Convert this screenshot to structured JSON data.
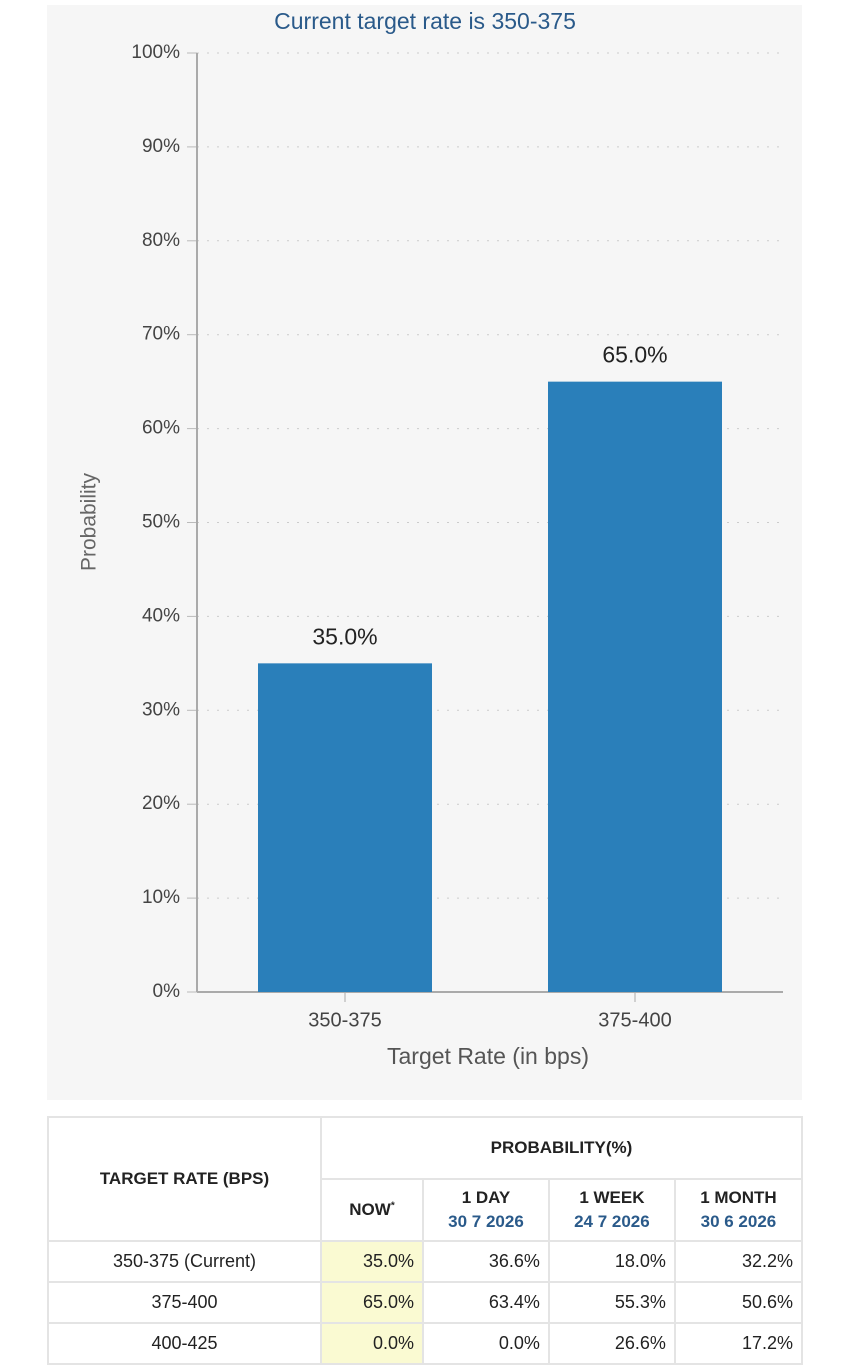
{
  "chart_data": {
    "type": "bar",
    "title": "Current target rate is 350-375",
    "categories": [
      "350-375",
      "375-400"
    ],
    "values": [
      35.0,
      65.0
    ],
    "value_labels": [
      "35.0%",
      "65.0%"
    ],
    "color": "#2a7fba",
    "ylim": [
      0,
      100
    ],
    "yticks": [
      {
        "value": 0,
        "label": "0%"
      },
      {
        "value": 10,
        "label": "10%"
      },
      {
        "value": 20,
        "label": "20%"
      },
      {
        "value": 30,
        "label": "30%"
      },
      {
        "value": 40,
        "label": "40%"
      },
      {
        "value": 50,
        "label": "50%"
      },
      {
        "value": 60,
        "label": "60%"
      },
      {
        "value": 70,
        "label": "70%"
      },
      {
        "value": 80,
        "label": "80%"
      },
      {
        "value": 90,
        "label": "90%"
      },
      {
        "value": 100,
        "label": "100%"
      }
    ],
    "y_label": "Probability",
    "x_label": "Target Rate (in bps)",
    "grid": true
  },
  "table": {
    "row_header": "TARGET RATE (BPS)",
    "group_header": "PROBABILITY(%)",
    "columns": [
      {
        "label": "NOW",
        "note": "*"
      },
      {
        "label": "1 DAY",
        "date": "30 7 2026"
      },
      {
        "label": "1 WEEK",
        "date": "24 7 2026"
      },
      {
        "label": "1 MONTH",
        "date": "30 6 2026"
      }
    ],
    "rows": [
      [
        "350-375 (Current)",
        "35.0%",
        "36.6%",
        "18.0%",
        "32.2%"
      ],
      [
        "375-400",
        "65.0%",
        "63.4%",
        "55.3%",
        "50.6%"
      ],
      [
        "400-425",
        "0.0%",
        "0.0%",
        "26.6%",
        "17.2%"
      ]
    ]
  }
}
